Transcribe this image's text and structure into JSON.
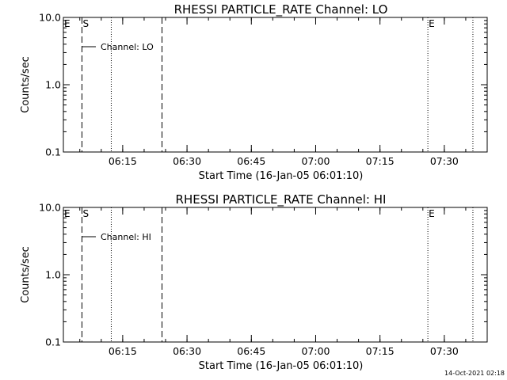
{
  "footer": "14-Oct-2021 02:18",
  "chart_data": [
    {
      "type": "line",
      "title": "RHESSI PARTICLE_RATE Channel: LO",
      "xlabel": "Start Time (16-Jan-05 06:01:10)",
      "ylabel": "Counts/sec",
      "y_scale": "log",
      "ylim": [
        0.1,
        10.0
      ],
      "y_ticks": [
        "0.1",
        "1.0",
        "10.0"
      ],
      "xlim": [
        "06:01:10",
        "07:40:00"
      ],
      "x_ticks": [
        "06:15",
        "06:30",
        "06:45",
        "07:00",
        "07:15",
        "07:30"
      ],
      "series": [
        {
          "name": "Channel: LO",
          "values": []
        }
      ],
      "markers": [
        {
          "label": "E",
          "time": "06:01:10",
          "style": "dashed"
        },
        {
          "label": "S",
          "time": "06:05:30",
          "style": "dashed"
        },
        {
          "label": "",
          "time": "06:12:20",
          "style": "dotted"
        },
        {
          "label": "",
          "time": "06:24:10",
          "style": "dashed"
        },
        {
          "label": "E",
          "time": "07:26:10",
          "style": "dotted"
        },
        {
          "label": "",
          "time": "07:36:40",
          "style": "dotted"
        }
      ],
      "grid": false,
      "legend_position": "top-left"
    },
    {
      "type": "line",
      "title": "RHESSI PARTICLE_RATE Channel: HI",
      "xlabel": "Start Time (16-Jan-05 06:01:10)",
      "ylabel": "Counts/sec",
      "y_scale": "log",
      "ylim": [
        0.1,
        10.0
      ],
      "y_ticks": [
        "0.1",
        "1.0",
        "10.0"
      ],
      "xlim": [
        "06:01:10",
        "07:40:00"
      ],
      "x_ticks": [
        "06:15",
        "06:30",
        "06:45",
        "07:00",
        "07:15",
        "07:30"
      ],
      "series": [
        {
          "name": "Channel: HI",
          "values": []
        }
      ],
      "markers": [
        {
          "label": "E",
          "time": "06:01:10",
          "style": "dashed"
        },
        {
          "label": "S",
          "time": "06:05:30",
          "style": "dashed"
        },
        {
          "label": "",
          "time": "06:12:20",
          "style": "dotted"
        },
        {
          "label": "",
          "time": "06:24:10",
          "style": "dashed"
        },
        {
          "label": "E",
          "time": "07:26:10",
          "style": "dotted"
        },
        {
          "label": "",
          "time": "07:36:40",
          "style": "dotted"
        }
      ],
      "grid": false,
      "legend_position": "top-left"
    }
  ]
}
